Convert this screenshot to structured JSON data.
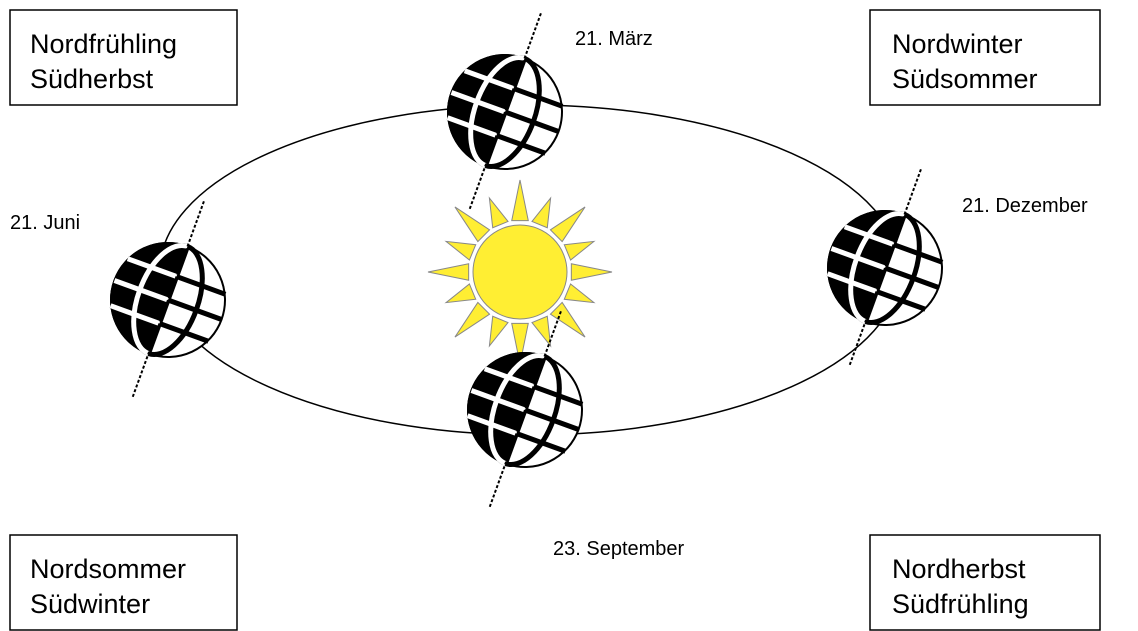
{
  "boxes": [
    {
      "lines": [
        "Nordfrühling",
        "Südherbst"
      ]
    },
    {
      "lines": [
        "Nordwinter",
        "Südsommer"
      ]
    },
    {
      "lines": [
        "Nordsommer",
        "Südwinter"
      ]
    },
    {
      "lines": [
        "Nordherbst",
        "Südfrühling"
      ]
    }
  ],
  "dates": [
    "21. März",
    "21. Juni",
    "21. Dezember",
    "23. September"
  ]
}
